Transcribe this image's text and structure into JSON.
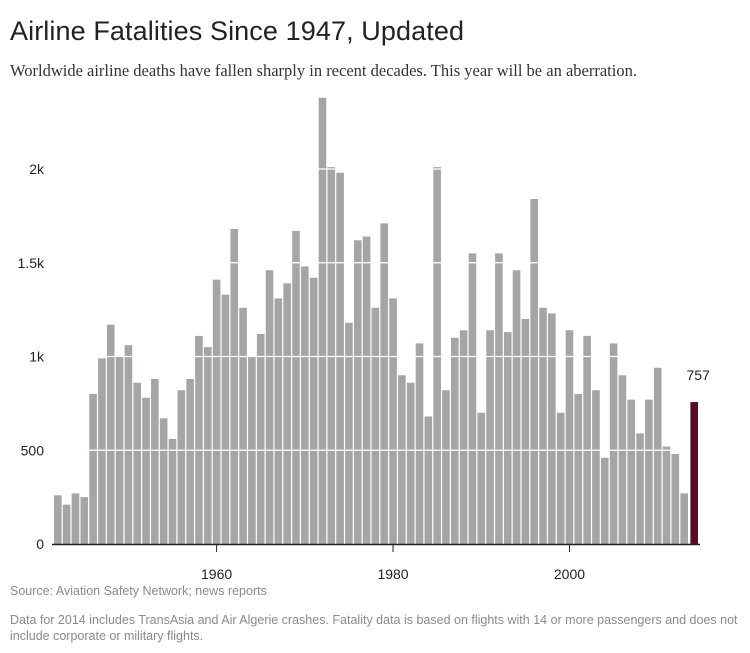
{
  "title": "Airline Fatalities Since 1947, Updated",
  "subtitle": "Worldwide airline deaths have fallen sharply in recent decades. This year will be an aberration.",
  "source": "Source: Aviation Safety Network; news reports",
  "note": "Data for 2014 includes TransAsia and Air Algerie crashes. Fatality data is based on flights with 14 or more passengers and does not include corporate or military flights.",
  "colors": {
    "bar": "#a7a5a3",
    "highlight": "#5a0a25",
    "axis": "#222222",
    "grid": "#ffffff",
    "text": "#222222"
  },
  "chart_data": {
    "type": "bar",
    "x": [
      1942,
      1943,
      1944,
      1945,
      1946,
      1947,
      1948,
      1949,
      1950,
      1951,
      1952,
      1953,
      1954,
      1955,
      1956,
      1957,
      1958,
      1959,
      1960,
      1961,
      1962,
      1963,
      1964,
      1965,
      1966,
      1967,
      1968,
      1969,
      1970,
      1971,
      1972,
      1973,
      1974,
      1975,
      1976,
      1977,
      1978,
      1979,
      1980,
      1981,
      1982,
      1983,
      1984,
      1985,
      1986,
      1987,
      1988,
      1989,
      1990,
      1991,
      1992,
      1993,
      1994,
      1995,
      1996,
      1997,
      1998,
      1999,
      2000,
      2001,
      2002,
      2003,
      2004,
      2005,
      2006,
      2007,
      2008,
      2009,
      2010,
      2011,
      2012,
      2013,
      2014
    ],
    "values": [
      260,
      210,
      270,
      250,
      800,
      990,
      1170,
      1000,
      1060,
      860,
      780,
      880,
      670,
      560,
      820,
      880,
      1110,
      1050,
      1410,
      1330,
      1680,
      1260,
      1000,
      1120,
      1460,
      1310,
      1390,
      1670,
      1480,
      1420,
      2380,
      2010,
      1980,
      1180,
      1620,
      1640,
      1260,
      1710,
      1310,
      900,
      860,
      1070,
      680,
      2010,
      820,
      1100,
      1140,
      1550,
      700,
      1140,
      1550,
      1130,
      1460,
      1200,
      1840,
      1260,
      1230,
      700,
      1140,
      800,
      1110,
      820,
      460,
      1070,
      900,
      770,
      590,
      770,
      940,
      520,
      480,
      270,
      757
    ],
    "highlight": {
      "x": 2014,
      "label": "757"
    },
    "xticks": [
      1960,
      1980,
      2000
    ],
    "yticks": [
      0,
      500,
      1000,
      1500,
      2000
    ],
    "ytick_labels": [
      "0",
      "500",
      "1k",
      "1.5k",
      "2k"
    ],
    "ylim": [
      0,
      2400
    ],
    "xlabel": "",
    "ylabel": "",
    "grid": "horizontal white lines over bars"
  }
}
